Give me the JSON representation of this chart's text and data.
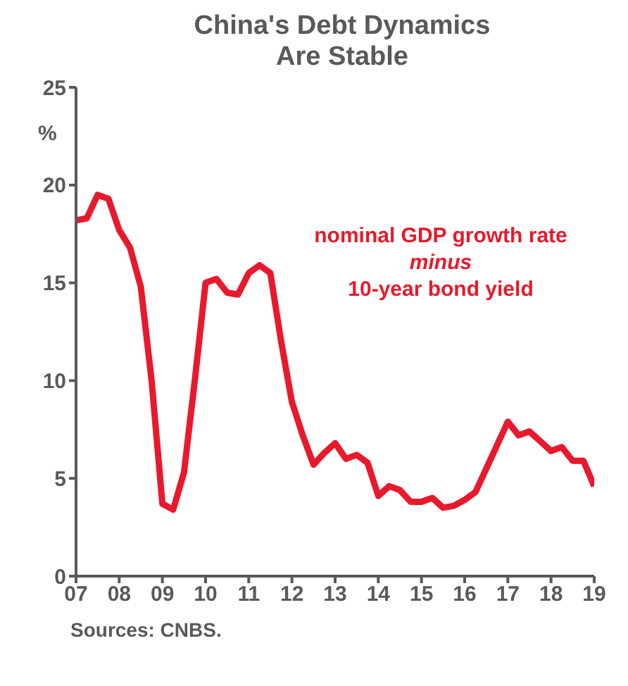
{
  "chart_data": {
    "type": "line",
    "title": "China's Debt Dynamics\nAre Stable",
    "ylabel": "%",
    "annotations": [
      "Sources: CNBS."
    ],
    "x": [
      2007,
      2007.25,
      2007.5,
      2007.75,
      2008,
      2008.25,
      2008.5,
      2008.75,
      2009,
      2009.25,
      2009.5,
      2009.75,
      2010,
      2010.25,
      2010.5,
      2010.75,
      2011,
      2011.25,
      2011.5,
      2011.75,
      2012,
      2012.25,
      2012.5,
      2012.75,
      2013,
      2013.25,
      2013.5,
      2013.75,
      2014,
      2014.25,
      2014.5,
      2014.75,
      2015,
      2015.25,
      2015.5,
      2015.75,
      2016,
      2016.25,
      2016.5,
      2016.75,
      2017,
      2017.25,
      2017.5,
      2017.75,
      2018,
      2018.25,
      2018.5,
      2018.75,
      2019
    ],
    "series": [
      {
        "name": "nominal GDP growth rate\nminus\n10-year bond yield",
        "color": "#e8192c",
        "values": [
          18.2,
          18.3,
          19.5,
          19.3,
          17.7,
          16.8,
          14.8,
          10.0,
          3.7,
          3.4,
          5.3,
          10.0,
          15.0,
          15.2,
          14.5,
          14.4,
          15.5,
          15.9,
          15.5,
          12.0,
          8.9,
          7.2,
          5.7,
          6.3,
          6.8,
          6.0,
          6.2,
          5.8,
          4.1,
          4.6,
          4.4,
          3.8,
          3.8,
          4.0,
          3.5,
          3.6,
          3.9,
          4.3,
          5.5,
          6.7,
          7.9,
          7.2,
          7.4,
          6.9,
          6.4,
          6.6,
          5.9,
          5.9,
          4.6
        ]
      }
    ],
    "xlim": [
      2007,
      2019
    ],
    "xticks": [
      {
        "value": 2007,
        "label": "07"
      },
      {
        "value": 2008,
        "label": "08"
      },
      {
        "value": 2009,
        "label": "09"
      },
      {
        "value": 2010,
        "label": "10"
      },
      {
        "value": 2011,
        "label": "11"
      },
      {
        "value": 2012,
        "label": "12"
      },
      {
        "value": 2013,
        "label": "13"
      },
      {
        "value": 2014,
        "label": "14"
      },
      {
        "value": 2015,
        "label": "15"
      },
      {
        "value": 2016,
        "label": "16"
      },
      {
        "value": 2017,
        "label": "17"
      },
      {
        "value": 2018,
        "label": "18"
      },
      {
        "value": 2019,
        "label": "19"
      }
    ],
    "ylim": [
      0,
      25
    ],
    "yticks": [
      0,
      5,
      10,
      15,
      20,
      25
    ],
    "marker": "none",
    "line_style": "solid"
  }
}
